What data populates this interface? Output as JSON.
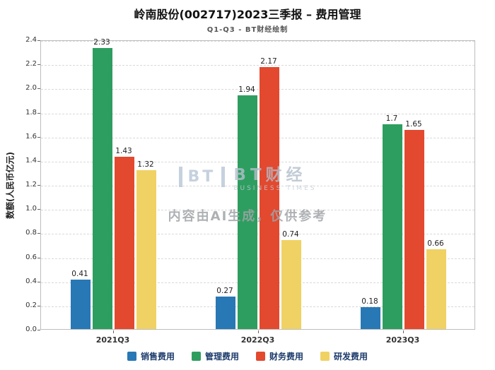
{
  "header": {
    "title": "岭南股份(002717)2023三季报 – 费用管理",
    "subtitle": "Q1-Q3 - BT财经绘制"
  },
  "watermark": {
    "icon_text": "BT",
    "brand": "BT财经",
    "brand_sub": "BUSINESS TIMES",
    "notice": "内容由AI生成，仅供参考"
  },
  "chart_data": {
    "type": "bar",
    "title": "岭南股份(002717)2023三季报 – 费用管理",
    "subtitle": "Q1-Q3 - BT财经绘制",
    "xlabel": "",
    "ylabel": "数额(人民币亿元)",
    "categories": [
      "2021Q3",
      "2022Q3",
      "2023Q3"
    ],
    "series": [
      {
        "name": "销售费用",
        "color": "#2878b5",
        "values": [
          0.41,
          0.27,
          0.18
        ]
      },
      {
        "name": "管理费用",
        "color": "#2e9e60",
        "values": [
          2.33,
          1.94,
          1.7
        ]
      },
      {
        "name": "财务费用",
        "color": "#e2492f",
        "values": [
          1.43,
          2.17,
          1.65
        ]
      },
      {
        "name": "研发费用",
        "color": "#f0d264",
        "values": [
          1.32,
          0.74,
          0.66
        ]
      }
    ],
    "ylim": [
      0,
      2.4
    ],
    "ytick_step": 0.2,
    "grid": "horizontal-dashed",
    "legend_position": "bottom"
  }
}
